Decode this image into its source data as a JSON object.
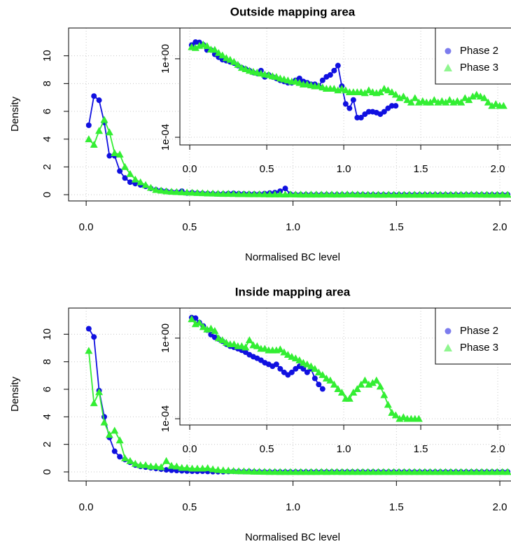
{
  "chart_data": [
    {
      "type": "line",
      "title": "Outside mapping area",
      "x_label": "Normalised BC level",
      "y_label": "Density",
      "x": [
        0.0125,
        0.0375,
        0.0625,
        0.0875,
        0.1125,
        0.1375,
        0.1625,
        0.1875,
        0.2125,
        0.2375,
        0.2625,
        0.2875,
        0.3125,
        0.3375,
        0.3625,
        0.3875,
        0.4125,
        0.4375,
        0.4625,
        0.4875,
        0.5125,
        0.5375,
        0.5625,
        0.5875,
        0.6125,
        0.6375,
        0.6625,
        0.6875,
        0.7125,
        0.7375,
        0.7625,
        0.7875,
        0.8125,
        0.8375,
        0.8625,
        0.8875,
        0.9125,
        0.9375,
        0.9625,
        0.9875,
        1.0125,
        1.0375,
        1.0625,
        1.0875,
        1.1125,
        1.1375,
        1.1625,
        1.1875,
        1.2125,
        1.2375,
        1.2625,
        1.2875,
        1.3125,
        1.3375,
        1.3625,
        1.3875,
        1.4125,
        1.4375,
        1.4625,
        1.4875,
        1.5125,
        1.5375,
        1.5625,
        1.5875,
        1.6125,
        1.6375,
        1.6625,
        1.6875,
        1.7125,
        1.7375,
        1.7625,
        1.7875,
        1.8125,
        1.8375,
        1.8625,
        1.8875,
        1.9125,
        1.9375,
        1.9625,
        1.9875,
        2.0125,
        2.0375
      ],
      "series": [
        {
          "name": "Phase 2",
          "color": "#1010e0",
          "marker": "circle",
          "values": [
            5.0,
            7.1,
            6.8,
            5.2,
            2.8,
            2.8,
            1.7,
            1.2,
            0.9,
            0.8,
            0.7,
            0.6,
            0.45,
            0.35,
            0.3,
            0.25,
            0.2,
            0.18,
            0.25,
            0.12,
            0.15,
            0.12,
            0.1,
            0.08,
            0.07,
            0.06,
            0.06,
            0.08,
            0.1,
            0.07,
            0.06,
            0.05,
            0.05,
            0.04,
            0.08,
            0.12,
            0.15,
            0.25,
            0.45,
            0.04,
            0.005,
            0.003,
            0.008,
            0.001,
            0.001,
            0.0015,
            0.002,
            0.002,
            0.0018,
            0.0015,
            0.002,
            0.003,
            0.004,
            0.004,
            0,
            0,
            0,
            0,
            0,
            0,
            0,
            0,
            0,
            0,
            0,
            0,
            0,
            0,
            0,
            0,
            0,
            0,
            0,
            0,
            0,
            0,
            0,
            0,
            0,
            0,
            0,
            0
          ]
        },
        {
          "name": "Phase 3",
          "color": "#33ee33",
          "marker": "triangle",
          "values": [
            4.0,
            3.6,
            4.6,
            5.4,
            4.5,
            3.0,
            2.9,
            2.0,
            1.5,
            1.1,
            0.9,
            0.7,
            0.5,
            0.35,
            0.3,
            0.25,
            0.22,
            0.2,
            0.18,
            0.16,
            0.15,
            0.13,
            0.12,
            0.1,
            0.09,
            0.08,
            0.07,
            0.07,
            0.06,
            0.05,
            0.05,
            0.045,
            0.04,
            0.04,
            0.035,
            0.03,
            0.03,
            0.03,
            0.025,
            0.03,
            0.025,
            0.02,
            0.02,
            0.02,
            0.02,
            0.018,
            0.025,
            0.02,
            0.018,
            0.02,
            0.03,
            0.025,
            0.02,
            0.015,
            0.01,
            0.012,
            0.008,
            0.006,
            0.01,
            0.006,
            0.007,
            0.006,
            0.006,
            0.008,
            0.006,
            0.007,
            0.006,
            0.008,
            0.006,
            0.007,
            0.006,
            0.01,
            0.008,
            0.012,
            0.015,
            0.012,
            0.01,
            0.006,
            0.004,
            0.005,
            0.004,
            0.004
          ]
        }
      ],
      "xlim": [
        -0.085,
        2.054
      ],
      "xticks": [
        {
          "value": 0,
          "label": "0.0"
        },
        0.5,
        {
          "value": 1,
          "label": "1.0"
        },
        1.5,
        {
          "value": 2,
          "label": "2.0"
        }
      ],
      "ylim": [
        -0.45,
        12.0
      ],
      "yticks": [
        0,
        2,
        4,
        6,
        8,
        10
      ],
      "grid": true,
      "inset": {
        "xlim": [
          -0.064,
          2.086
        ],
        "xticks": [
          {
            "value": 0,
            "label": "0.0"
          },
          0.5,
          {
            "value": 1,
            "label": "1.0"
          },
          1.5,
          {
            "value": 2,
            "label": "2.0"
          }
        ],
        "ylim": [
          4.07e-05,
          37
        ],
        "yticks": [
          {
            "value": 1,
            "label": "1e+00"
          },
          {
            "value": 0.0001,
            "label": "1e-04"
          }
        ],
        "ylog": true,
        "grid": true,
        "legend": "top-right"
      }
    },
    {
      "type": "line",
      "title": "Inside mapping area",
      "x_label": "Normalised BC level",
      "y_label": "Density",
      "x": [
        0.0125,
        0.0375,
        0.0625,
        0.0875,
        0.1125,
        0.1375,
        0.1625,
        0.1875,
        0.2125,
        0.2375,
        0.2625,
        0.2875,
        0.3125,
        0.3375,
        0.3625,
        0.3875,
        0.4125,
        0.4375,
        0.4625,
        0.4875,
        0.5125,
        0.5375,
        0.5625,
        0.5875,
        0.6125,
        0.6375,
        0.6625,
        0.6875,
        0.7125,
        0.7375,
        0.7625,
        0.7875,
        0.8125,
        0.8375,
        0.8625,
        0.8875,
        0.9125,
        0.9375,
        0.9625,
        0.9875,
        1.0125,
        1.0375,
        1.0625,
        1.0875,
        1.1125,
        1.1375,
        1.1625,
        1.1875,
        1.2125,
        1.2375,
        1.2625,
        1.2875,
        1.3125,
        1.3375,
        1.3625,
        1.3875,
        1.4125,
        1.4375,
        1.4625,
        1.4875,
        1.5125,
        1.5375,
        1.5625,
        1.5875,
        1.6125,
        1.6375,
        1.6625,
        1.6875,
        1.7125,
        1.7375,
        1.7625,
        1.7875,
        1.8125,
        1.8375,
        1.8625,
        1.8875,
        1.9125,
        1.9375,
        1.9625,
        1.9875,
        2.0125,
        2.0375
      ],
      "series": [
        {
          "name": "Phase 2",
          "color": "#1010e0",
          "marker": "circle",
          "values": [
            10.4,
            9.8,
            5.9,
            4.0,
            2.5,
            1.5,
            1.1,
            0.9,
            0.7,
            0.5,
            0.4,
            0.35,
            0.3,
            0.25,
            0.2,
            0.15,
            0.12,
            0.1,
            0.08,
            0.06,
            0.05,
            0.04,
            0.05,
            0.03,
            0.02,
            0.015,
            0.02,
            0.03,
            0.04,
            0.03,
            0.02,
            0.03,
            0.01,
            0.005,
            0.003,
            0,
            0,
            0,
            0,
            0,
            0,
            0,
            0,
            0,
            0,
            0,
            0,
            0,
            0,
            0,
            0,
            0,
            0,
            0,
            0,
            0,
            0,
            0,
            0,
            0,
            0,
            0,
            0,
            0,
            0,
            0,
            0,
            0,
            0,
            0,
            0,
            0,
            0,
            0,
            0,
            0,
            0,
            0,
            0,
            0,
            0,
            0
          ]
        },
        {
          "name": "Phase 3",
          "color": "#33ee33",
          "marker": "triangle",
          "values": [
            8.8,
            5.0,
            5.8,
            3.6,
            2.7,
            3.0,
            2.3,
            1.0,
            0.8,
            0.6,
            0.5,
            0.5,
            0.4,
            0.4,
            0.35,
            0.8,
            0.45,
            0.4,
            0.3,
            0.3,
            0.25,
            0.25,
            0.25,
            0.28,
            0.2,
            0.15,
            0.12,
            0.1,
            0.08,
            0.06,
            0.05,
            0.04,
            0.03,
            0.02,
            0.015,
            0.01,
            0.008,
            0.005,
            0.003,
            0.002,
            0.001,
            0.001,
            0.002,
            0.003,
            0.005,
            0.008,
            0.005,
            0.006,
            0.008,
            0.004,
            0.0015,
            0.0005,
            0.0002,
            0.00015,
            0.0001,
            0.00012,
            0.0001,
            0.0001,
            0.0001,
            0.0001,
            0,
            0,
            0,
            0,
            0,
            0,
            0,
            0,
            0,
            0,
            0,
            0,
            0,
            0,
            0,
            0,
            0,
            0,
            0,
            0,
            0,
            0
          ]
        }
      ],
      "xlim": [
        -0.085,
        2.054
      ],
      "xticks": [
        {
          "value": 0,
          "label": "0.0"
        },
        0.5,
        {
          "value": 1,
          "label": "1.0"
        },
        1.5,
        {
          "value": 2,
          "label": "2.0"
        }
      ],
      "ylim": [
        -0.66,
        11.9
      ],
      "yticks": [
        0,
        2,
        4,
        6,
        8,
        10
      ],
      "grid": true,
      "inset": {
        "xlim": [
          -0.064,
          2.086
        ],
        "xticks": [
          {
            "value": 0,
            "label": "0.0"
          },
          0.5,
          {
            "value": 1,
            "label": "1.0"
          },
          1.5,
          {
            "value": 2,
            "label": "2.0"
          }
        ],
        "ylim": [
          4.9e-05,
          31
        ],
        "yticks": [
          {
            "value": 1,
            "label": "1e+00"
          },
          {
            "value": 0.0001,
            "label": "1e-04"
          }
        ],
        "ylog": true,
        "grid": true,
        "legend": "top-right"
      }
    }
  ]
}
